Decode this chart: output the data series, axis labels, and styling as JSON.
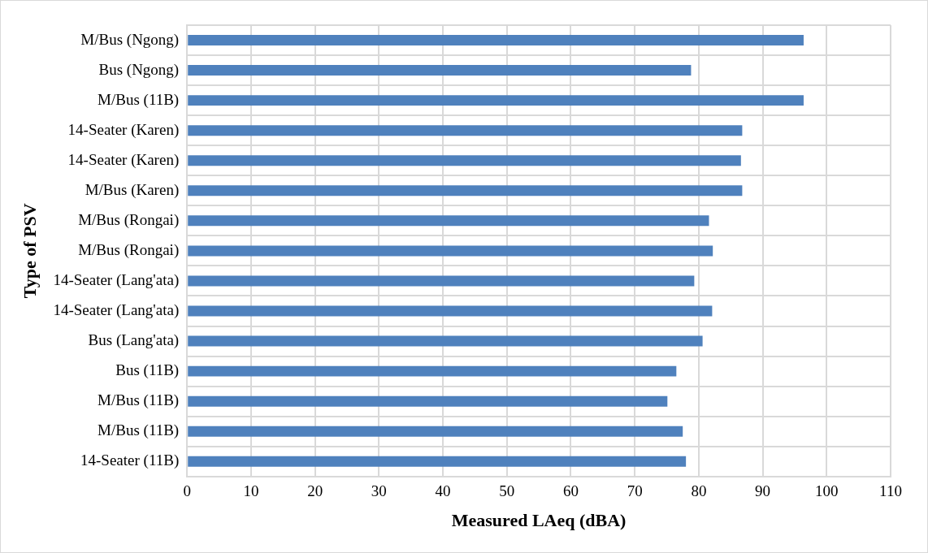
{
  "chart_data": {
    "type": "bar",
    "orientation": "horizontal",
    "xlabel": "Measured LAeq (dBA)",
    "ylabel": "Type of PSV",
    "categories": [
      "M/Bus (Ngong)",
      "Bus (Ngong)",
      "M/Bus (11B)",
      "14-Seater (Karen)",
      "14-Seater (Karen)",
      "M/Bus (Karen)",
      "M/Bus (Rongai)",
      "M/Bus (Rongai)",
      "14-Seater (Lang'ata)",
      "14-Seater (Lang'ata)",
      "Bus (Lang'ata)",
      "Bus (11B)",
      "M/Bus (11B)",
      "M/Bus (11B)",
      "14-Seater (11B)"
    ],
    "values": [
      96.4,
      78.8,
      96.4,
      86.8,
      86.6,
      86.8,
      81.6,
      82.2,
      79.3,
      82.1,
      80.6,
      76.5,
      75.1,
      77.5,
      78.0
    ],
    "color": "#4f81bd",
    "xlim": [
      0,
      110
    ],
    "xticks": [
      0,
      10,
      20,
      30,
      40,
      50,
      60,
      70,
      80,
      90,
      100,
      110
    ],
    "grid": true,
    "legend": false
  }
}
